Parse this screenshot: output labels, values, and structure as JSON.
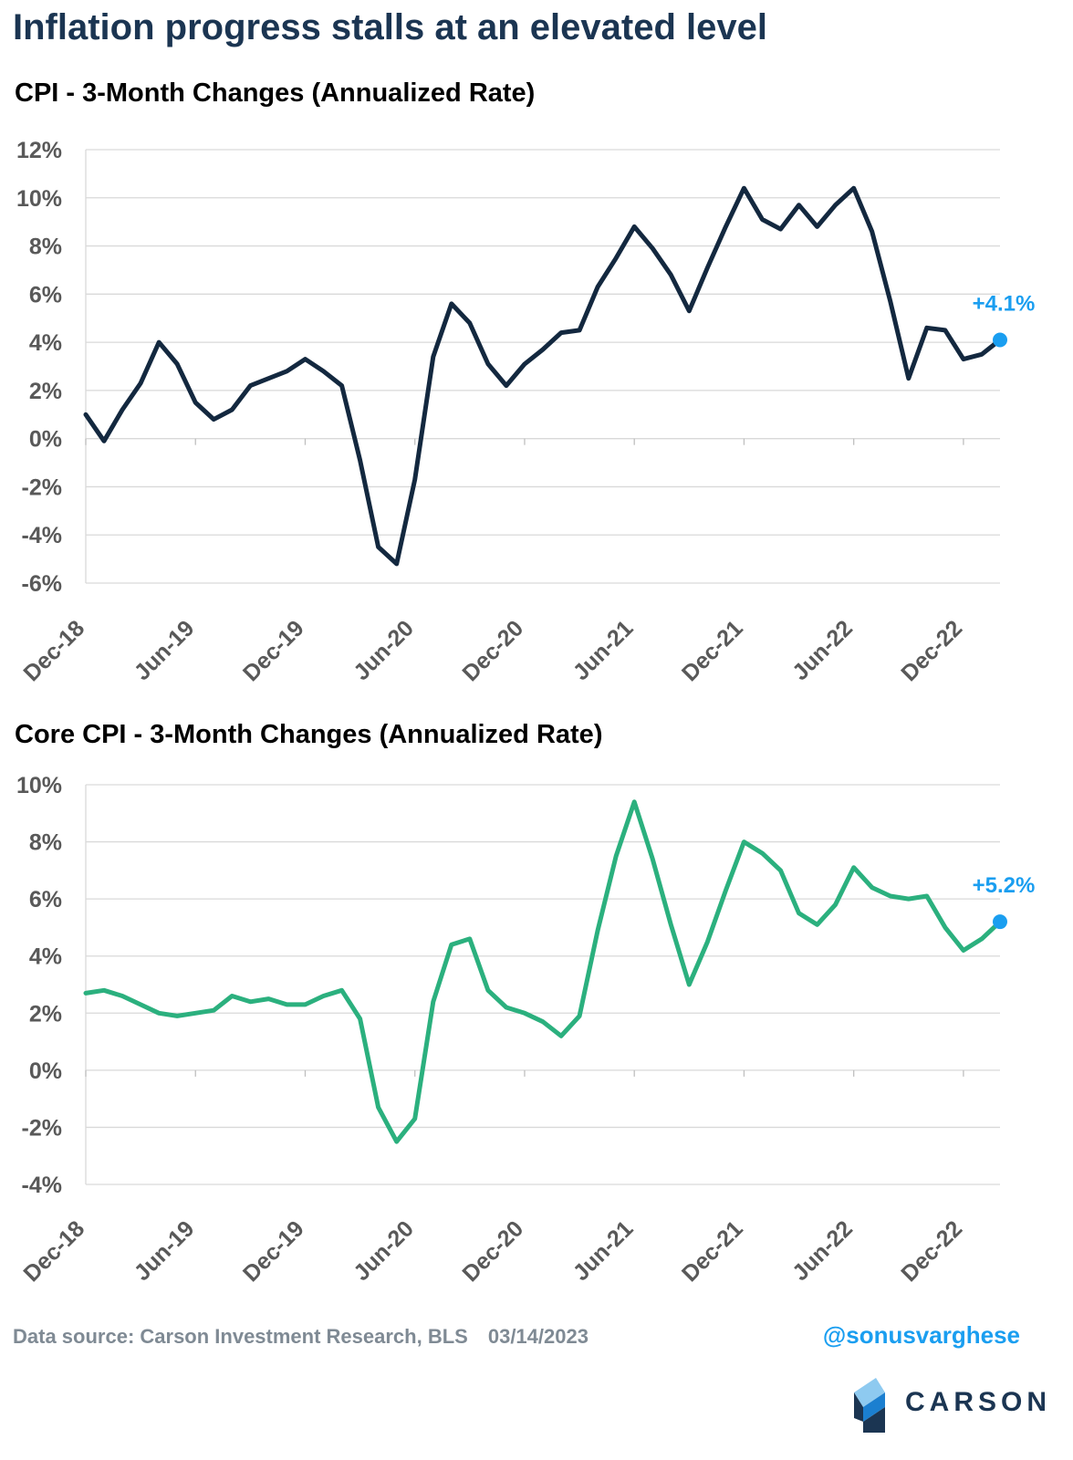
{
  "headline": "Inflation progress stalls at an elevated level",
  "footer": {
    "source": "Data source: Carson Investment Research, BLS",
    "date": "03/14/2023",
    "handle": "@sonusvarghese",
    "brand": "CARSON"
  },
  "colors": {
    "cpi_line": "#13283f",
    "core_line": "#2bb07e",
    "marker": "#1a9ef0",
    "headline": "#1b3552",
    "grid": "#d9d9d9"
  },
  "chart_data": [
    {
      "type": "line",
      "title": "CPI - 3-Month Changes (Annualized Rate)",
      "x_start": "Dec-18",
      "x_end": "Feb-23",
      "x_tick_labels": [
        "Dec-18",
        "Jun-19",
        "Dec-19",
        "Jun-20",
        "Dec-20",
        "Jun-21",
        "Dec-21",
        "Jun-22",
        "Dec-22"
      ],
      "y_tick_labels": [
        "12%",
        "10%",
        "8%",
        "6%",
        "4%",
        "2%",
        "0%",
        "-2%",
        "-4%",
        "-6%"
      ],
      "ylim": [
        -6,
        12
      ],
      "grid": "horizontal",
      "series": [
        {
          "values": [
            1.0,
            -0.1,
            1.2,
            2.3,
            4.0,
            3.1,
            1.5,
            0.8,
            1.2,
            2.2,
            2.5,
            2.8,
            3.3,
            2.8,
            2.2,
            -0.9,
            -4.5,
            -5.2,
            -1.7,
            3.4,
            5.6,
            4.8,
            3.1,
            2.2,
            3.1,
            3.7,
            4.4,
            4.5,
            6.3,
            7.5,
            8.8,
            7.9,
            6.8,
            5.3,
            7.1,
            8.8,
            10.4,
            9.1,
            8.7,
            9.7,
            8.8,
            9.7,
            10.4,
            8.6,
            5.7,
            2.5,
            4.6,
            4.5,
            3.3,
            3.5,
            4.1
          ]
        }
      ],
      "annotation": "+4.1%"
    },
    {
      "type": "line",
      "title": "Core CPI - 3-Month Changes (Annualized Rate)",
      "x_start": "Dec-18",
      "x_end": "Feb-23",
      "x_tick_labels": [
        "Dec-18",
        "Jun-19",
        "Dec-19",
        "Jun-20",
        "Dec-20",
        "Jun-21",
        "Dec-21",
        "Jun-22",
        "Dec-22"
      ],
      "y_tick_labels": [
        "10%",
        "8%",
        "6%",
        "4%",
        "2%",
        "0%",
        "-2%",
        "-4%"
      ],
      "ylim": [
        -4,
        10
      ],
      "grid": "horizontal",
      "series": [
        {
          "values": [
            2.7,
            2.8,
            2.6,
            2.3,
            2.0,
            1.9,
            2.0,
            2.1,
            2.6,
            2.4,
            2.5,
            2.3,
            2.3,
            2.6,
            2.8,
            1.8,
            -1.3,
            -2.5,
            -1.7,
            2.4,
            4.4,
            4.6,
            2.8,
            2.2,
            2.0,
            1.7,
            1.2,
            1.9,
            4.9,
            7.5,
            9.4,
            7.4,
            5.1,
            3.0,
            4.5,
            6.3,
            8.0,
            7.6,
            7.0,
            5.5,
            5.1,
            5.8,
            7.1,
            6.4,
            6.1,
            6.0,
            6.1,
            5.0,
            4.2,
            4.6,
            5.2
          ]
        }
      ],
      "annotation": "+5.2%"
    }
  ]
}
